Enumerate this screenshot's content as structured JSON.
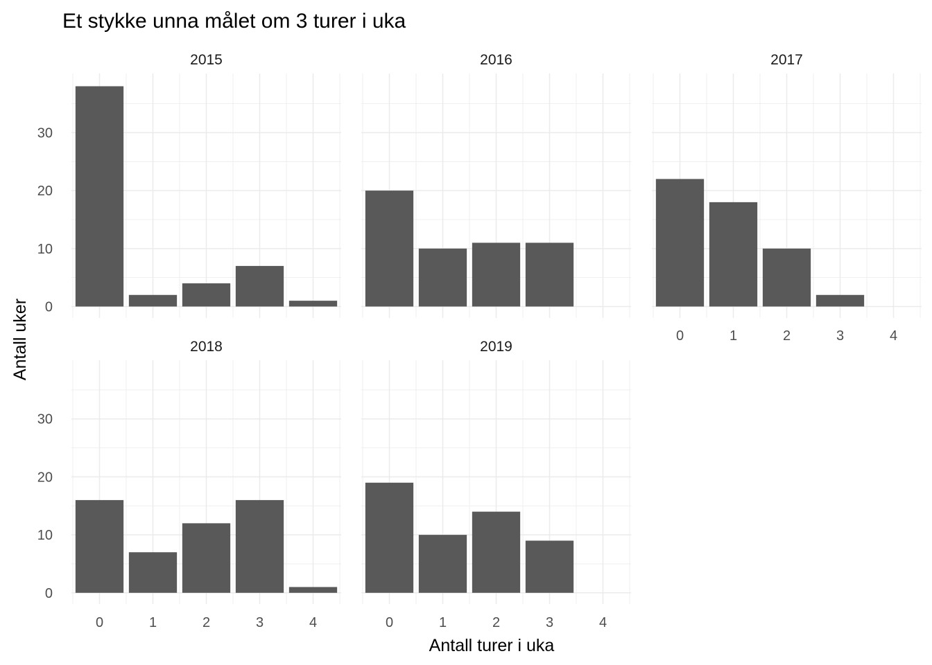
{
  "chart_data": {
    "type": "bar",
    "title": "Et stykke unna målet om 3 turer i uka",
    "xlabel": "Antall turer i uka",
    "ylabel": "Antall uker",
    "categories": [
      0,
      1,
      2,
      3,
      4
    ],
    "x_tick_labels": [
      "0",
      "1",
      "2",
      "3",
      "4"
    ],
    "y_ticks": [
      0,
      10,
      20,
      30
    ],
    "y_tick_labels": [
      "0",
      "10",
      "20",
      "30"
    ],
    "ylim": [
      0,
      39
    ],
    "grid": true,
    "bar_color": "#595959",
    "gridline_color": "#ebebeb",
    "facets": [
      {
        "label": "2015",
        "values": [
          38,
          2,
          4,
          7,
          1
        ]
      },
      {
        "label": "2016",
        "values": [
          20,
          10,
          11,
          11,
          0
        ]
      },
      {
        "label": "2017",
        "values": [
          22,
          18,
          10,
          2,
          0
        ]
      },
      {
        "label": "2018",
        "values": [
          16,
          7,
          12,
          16,
          1
        ]
      },
      {
        "label": "2019",
        "values": [
          19,
          10,
          14,
          9,
          0
        ]
      }
    ]
  }
}
